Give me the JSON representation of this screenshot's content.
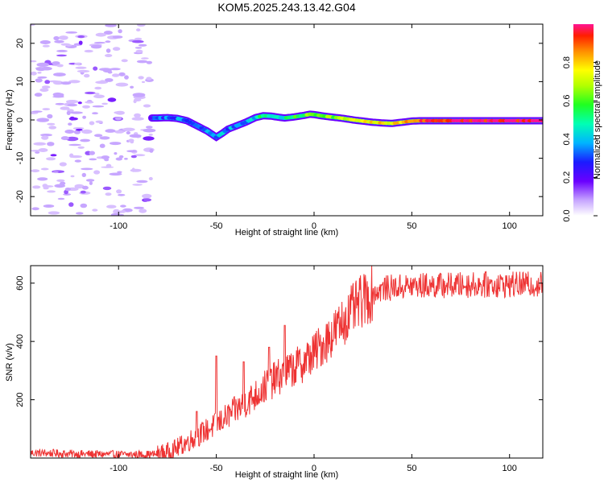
{
  "title": "KOM5.2025.243.13.42.G04",
  "chart_data": [
    {
      "type": "heatmap",
      "name": "spectrogram",
      "title": "KOM5.2025.243.13.42.G04",
      "xlabel": "Height of straight line (km)",
      "ylabel": "Frequency (Hz)",
      "xlim": [
        -145,
        117
      ],
      "ylim": [
        -25,
        25
      ],
      "xticks": [
        -100,
        -50,
        0,
        50,
        100
      ],
      "yticks": [
        -20,
        -10,
        0,
        10,
        20
      ],
      "noise_region_x": [
        -145,
        -83
      ],
      "ridge": {
        "x": [
          -83,
          -80,
          -75,
          -70,
          -65,
          -60,
          -55,
          -52,
          -50,
          -47,
          -44,
          -40,
          -35,
          -30,
          -26,
          -22,
          -18,
          -15,
          -10,
          -5,
          -2,
          0,
          5,
          10,
          15,
          20,
          25,
          30,
          35,
          40,
          45,
          50,
          55,
          60,
          70,
          80,
          90,
          100,
          110,
          117
        ],
        "frequency": [
          0.5,
          0.5,
          0.6,
          0.4,
          -0.2,
          -1.5,
          -2.8,
          -3.8,
          -4.5,
          -3.5,
          -2.4,
          -1.6,
          -0.6,
          0.6,
          1.1,
          1.0,
          0.7,
          0.5,
          0.8,
          1.2,
          1.5,
          1.4,
          1.0,
          0.7,
          0.4,
          0.0,
          -0.3,
          -0.6,
          -0.8,
          -0.9,
          -0.6,
          -0.3,
          -0.2,
          -0.2,
          -0.2,
          -0.2,
          -0.2,
          -0.2,
          -0.2,
          -0.2
        ],
        "amplitude": [
          0.2,
          0.25,
          0.3,
          0.3,
          0.25,
          0.25,
          0.3,
          0.35,
          0.35,
          0.35,
          0.3,
          0.35,
          0.35,
          0.4,
          0.5,
          0.45,
          0.4,
          0.45,
          0.5,
          0.55,
          0.6,
          0.6,
          0.65,
          0.6,
          0.65,
          0.7,
          0.7,
          0.75,
          0.75,
          0.75,
          0.8,
          0.85,
          0.9,
          0.95,
          0.95,
          0.97,
          0.97,
          0.98,
          0.98,
          0.98
        ]
      },
      "colorbar": {
        "label": "Normalized spectral amplitude",
        "range": [
          0,
          1
        ],
        "ticks": [
          0.0,
          0.2,
          0.4,
          0.6,
          0.8
        ],
        "tick_labels": [
          "0.0",
          "0.2",
          "0.4",
          "0.6",
          "0.8"
        ]
      }
    },
    {
      "type": "line",
      "name": "snr",
      "xlabel": "Height of straight line (km)",
      "ylabel": "SNR (v/v)",
      "xlim": [
        -145,
        117
      ],
      "ylim": [
        0,
        660
      ],
      "xticks": [
        -100,
        -50,
        0,
        50,
        100
      ],
      "yticks": [
        200,
        400,
        600
      ],
      "color": "#ee3333",
      "trend": {
        "x": [
          -145,
          -120,
          -100,
          -85,
          -80,
          -75,
          -70,
          -65,
          -60,
          -55,
          -50,
          -45,
          -40,
          -35,
          -30,
          -25,
          -20,
          -15,
          -10,
          -5,
          0,
          5,
          10,
          15,
          20,
          25,
          30,
          35,
          40,
          50,
          60,
          80,
          100,
          117
        ],
        "y": [
          18,
          14,
          12,
          12,
          14,
          20,
          35,
          55,
          75,
          95,
          115,
          140,
          165,
          190,
          215,
          245,
          270,
          290,
          310,
          330,
          360,
          395,
          430,
          470,
          510,
          540,
          565,
          580,
          585,
          590,
          592,
          594,
          595,
          595
        ]
      },
      "spikes": [
        {
          "x": -60,
          "y": 160
        },
        {
          "x": -50,
          "y": 350
        },
        {
          "x": -36,
          "y": 330
        },
        {
          "x": -23,
          "y": 380
        },
        {
          "x": -15,
          "y": 455
        }
      ]
    }
  ]
}
